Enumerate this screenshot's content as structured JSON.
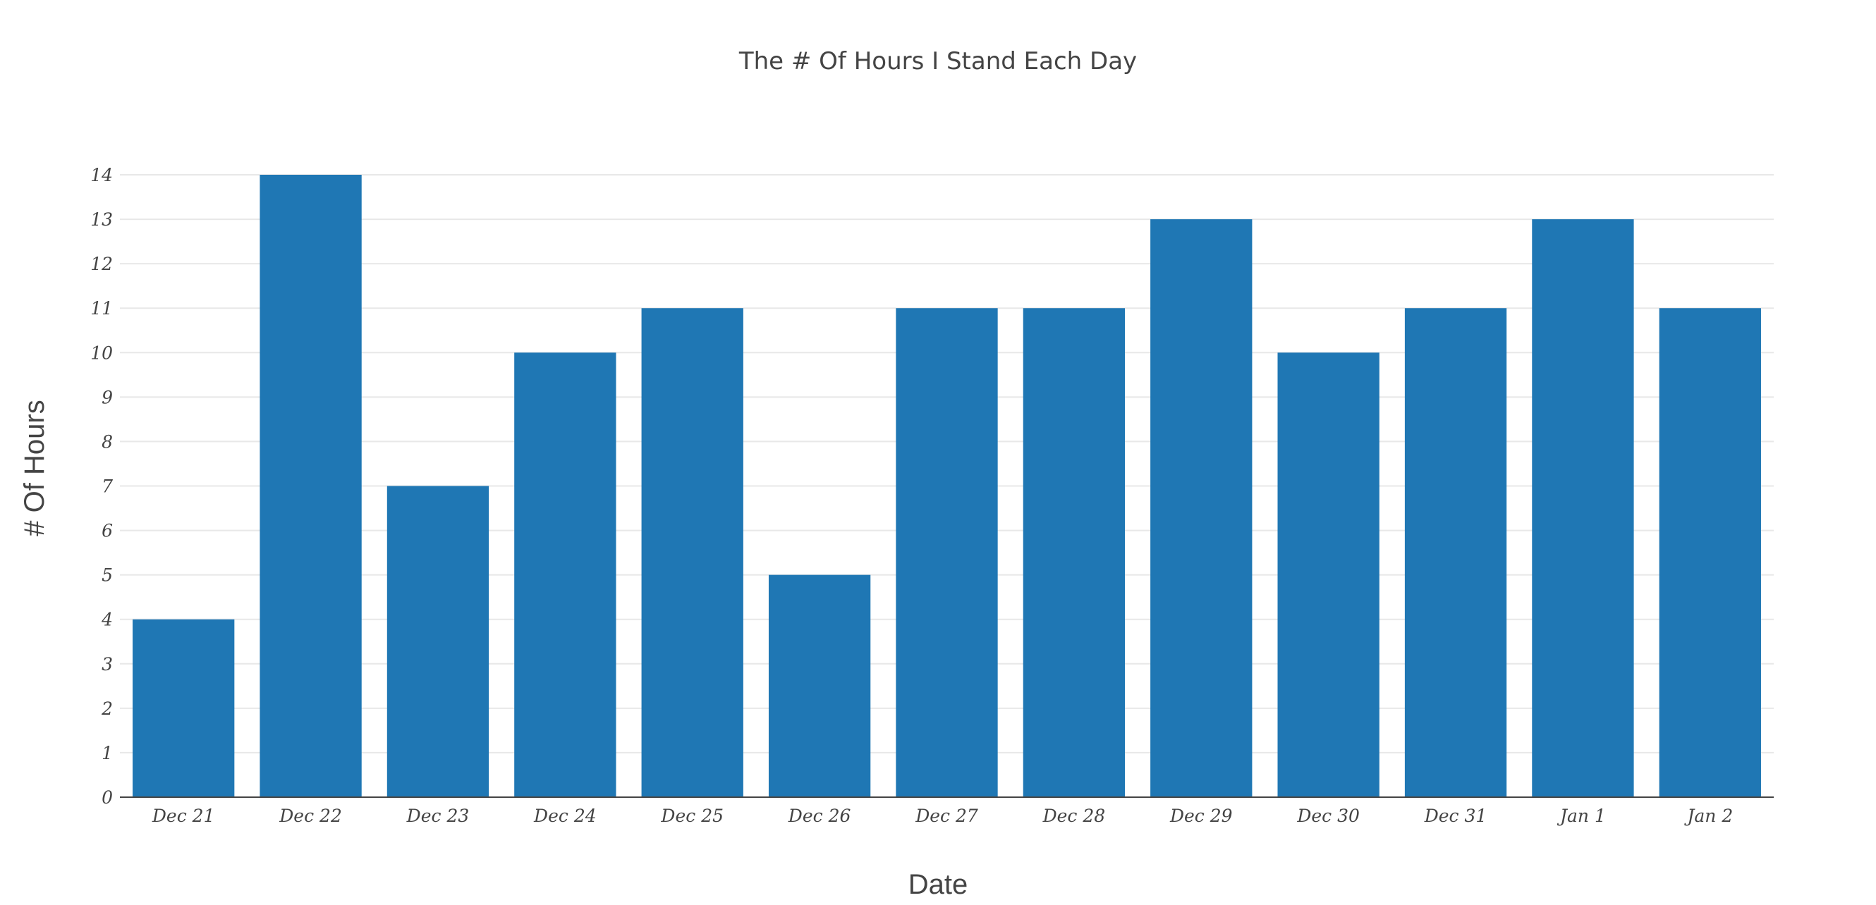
{
  "chart_data": {
    "type": "bar",
    "title": "The # Of Hours I Stand Each Day",
    "xlabel": "Date",
    "ylabel": "# Of Hours",
    "categories": [
      "Dec 21",
      "Dec 22",
      "Dec 23",
      "Dec 24",
      "Dec 25",
      "Dec 26",
      "Dec 27",
      "Dec 28",
      "Dec 29",
      "Dec 30",
      "Dec 31",
      "Jan 1",
      "Jan 2"
    ],
    "values": [
      4,
      14,
      7,
      10,
      11,
      5,
      11,
      11,
      13,
      10,
      11,
      13,
      11
    ],
    "ylim": [
      0,
      14
    ],
    "yticks": [
      0,
      1,
      2,
      3,
      4,
      5,
      6,
      7,
      8,
      9,
      10,
      11,
      12,
      13,
      14
    ],
    "grid": true,
    "legend": "none",
    "bar_color": "#1f77b4"
  }
}
